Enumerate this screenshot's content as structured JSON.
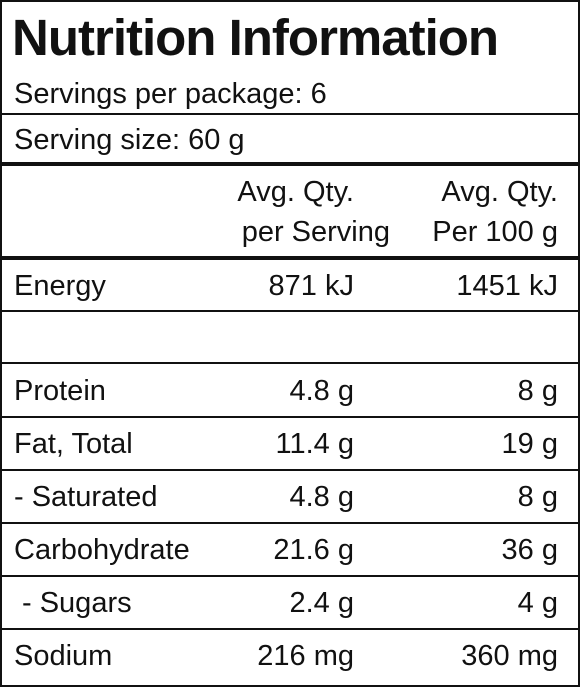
{
  "title": "Nutrition Information",
  "servings_per_package": "Servings per package: 6",
  "serving_size": "Serving size: 60 g",
  "header": {
    "per_serving": [
      "Avg. Qty.",
      "per Serving"
    ],
    "per_100g": [
      "Avg. Qty.",
      "Per 100 g"
    ]
  },
  "energy": [
    "Energy",
    "871 kJ",
    "1451 kJ"
  ],
  "rows": [
    [
      "Protein",
      "4.8 g",
      "8 g"
    ],
    [
      "Fat, Total",
      "11.4 g",
      "19 g"
    ],
    [
      "- Saturated",
      "4.8 g",
      "8 g"
    ],
    [
      "Carbohydrate",
      "21.6 g",
      "36 g"
    ],
    [
      "- Sugars",
      "2.4 g",
      "4 g"
    ],
    [
      "Sodium",
      "216 mg",
      "360 mg"
    ]
  ]
}
